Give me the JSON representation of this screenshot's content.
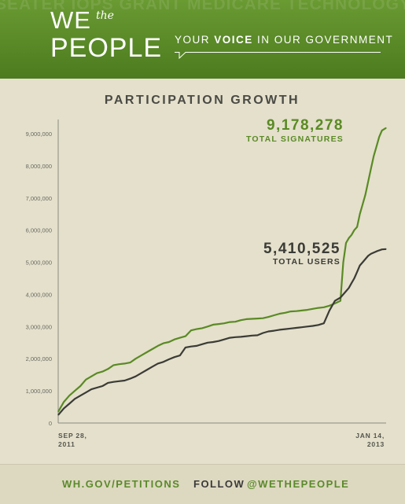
{
  "header": {
    "logo_we": "WE",
    "logo_the": "the",
    "logo_people": "PEOPLE",
    "tagline_pre": "YOUR ",
    "tagline_bold": "VOICE",
    "tagline_post": " IN OUR GOVERNMENT",
    "background_words": "SEATER IOPS GRANT MEDICARE  TECHNOLOGY ARTS DEFENSE EDU  GISLAT  LITY POLITICS ENVIRONMENT  JOBS  IMMIG  WA         TICALOTS  ENERGY  HEALTH  TAX  LAND  REFORM  FIRST ANDMENT  CIVIL WAR  WELFARE  TAXES  JOBS  CIAL SECURITY  VETERANS  IGRATION  PO"
  },
  "chart_data": {
    "type": "line",
    "title": "PARTICIPATION GROWTH",
    "xlabel": "",
    "ylabel": "",
    "x_ticks": [
      "SEP 28, 2011",
      "JAN 14, 2013"
    ],
    "x_range": [
      "2011-09-28",
      "2013-01-14"
    ],
    "y_ticks": [
      "0",
      "1,000,000",
      "2,000,000",
      "3,000,000",
      "4,000,000",
      "5,000,000",
      "6,000,000",
      "7,000,000",
      "8,000,000",
      "9,000,000"
    ],
    "ylim": [
      0,
      9200000
    ],
    "grid": false,
    "x": [
      "2011-09-28",
      "2011-10-06",
      "2011-10-14",
      "2011-10-22",
      "2011-10-30",
      "2011-11-07",
      "2011-11-15",
      "2011-11-23",
      "2011-12-01",
      "2011-12-09",
      "2011-12-17",
      "2011-12-25",
      "2012-01-02",
      "2012-01-10",
      "2012-01-18",
      "2012-01-26",
      "2012-02-03",
      "2012-02-11",
      "2012-02-19",
      "2012-02-27",
      "2012-03-06",
      "2012-03-14",
      "2012-03-22",
      "2012-03-30",
      "2012-04-07",
      "2012-04-15",
      "2012-04-23",
      "2012-05-01",
      "2012-05-09",
      "2012-05-17",
      "2012-05-25",
      "2012-06-02",
      "2012-06-10",
      "2012-06-18",
      "2012-06-26",
      "2012-07-04",
      "2012-07-12",
      "2012-07-20",
      "2012-07-28",
      "2012-08-05",
      "2012-08-13",
      "2012-08-21",
      "2012-08-29",
      "2012-09-06",
      "2012-09-14",
      "2012-09-22",
      "2012-09-30",
      "2012-10-08",
      "2012-10-16",
      "2012-10-24",
      "2012-11-01",
      "2012-11-09",
      "2012-11-13",
      "2012-11-17",
      "2012-11-21",
      "2012-11-25",
      "2012-11-29",
      "2012-12-03",
      "2012-12-07",
      "2012-12-11",
      "2012-12-15",
      "2012-12-19",
      "2012-12-23",
      "2012-12-27",
      "2012-12-31",
      "2013-01-04",
      "2013-01-08",
      "2013-01-14"
    ],
    "series": [
      {
        "name": "TOTAL SIGNATURES",
        "color": "#5a8a24",
        "values": [
          350000,
          650000,
          850000,
          1000000,
          1150000,
          1350000,
          1450000,
          1550000,
          1600000,
          1680000,
          1800000,
          1830000,
          1850000,
          1880000,
          2000000,
          2100000,
          2200000,
          2300000,
          2400000,
          2480000,
          2520000,
          2600000,
          2650000,
          2700000,
          2880000,
          2920000,
          2950000,
          3000000,
          3060000,
          3080000,
          3100000,
          3140000,
          3150000,
          3200000,
          3230000,
          3240000,
          3250000,
          3260000,
          3300000,
          3350000,
          3400000,
          3430000,
          3470000,
          3480000,
          3500000,
          3520000,
          3550000,
          3580000,
          3600000,
          3650000,
          3720000,
          3800000,
          5000000,
          5600000,
          5750000,
          5850000,
          6000000,
          6100000,
          6500000,
          6800000,
          7100000,
          7500000,
          7900000,
          8300000,
          8600000,
          8900000,
          9100000,
          9178278
        ]
      },
      {
        "name": "TOTAL USERS",
        "color": "#3b3b36",
        "values": [
          250000,
          450000,
          600000,
          750000,
          850000,
          950000,
          1050000,
          1100000,
          1150000,
          1250000,
          1280000,
          1300000,
          1320000,
          1380000,
          1450000,
          1550000,
          1650000,
          1750000,
          1850000,
          1900000,
          1980000,
          2050000,
          2100000,
          2350000,
          2380000,
          2400000,
          2450000,
          2500000,
          2520000,
          2550000,
          2600000,
          2650000,
          2670000,
          2680000,
          2700000,
          2720000,
          2730000,
          2800000,
          2850000,
          2870000,
          2900000,
          2920000,
          2940000,
          2960000,
          2980000,
          3000000,
          3020000,
          3050000,
          3100000,
          3500000,
          3800000,
          3900000,
          4000000,
          4100000,
          4200000,
          4350000,
          4500000,
          4700000,
          4900000,
          5000000,
          5100000,
          5200000,
          5260000,
          5300000,
          5340000,
          5370000,
          5400000,
          5410525
        ]
      }
    ],
    "annotations": [
      {
        "value": "9,178,278",
        "label": "TOTAL SIGNATURES",
        "series": "TOTAL SIGNATURES"
      },
      {
        "value": "5,410,525",
        "label": "TOTAL USERS",
        "series": "TOTAL USERS"
      }
    ]
  },
  "footer": {
    "link": "WH.GOV/PETITIONS",
    "follow": "FOLLOW",
    "handle": "@WETHEPEOPLE"
  },
  "colors": {
    "banner": "#5a8a2a",
    "signatures": "#5a8a24",
    "users": "#3b3b36",
    "background": "#e4e0cc"
  }
}
